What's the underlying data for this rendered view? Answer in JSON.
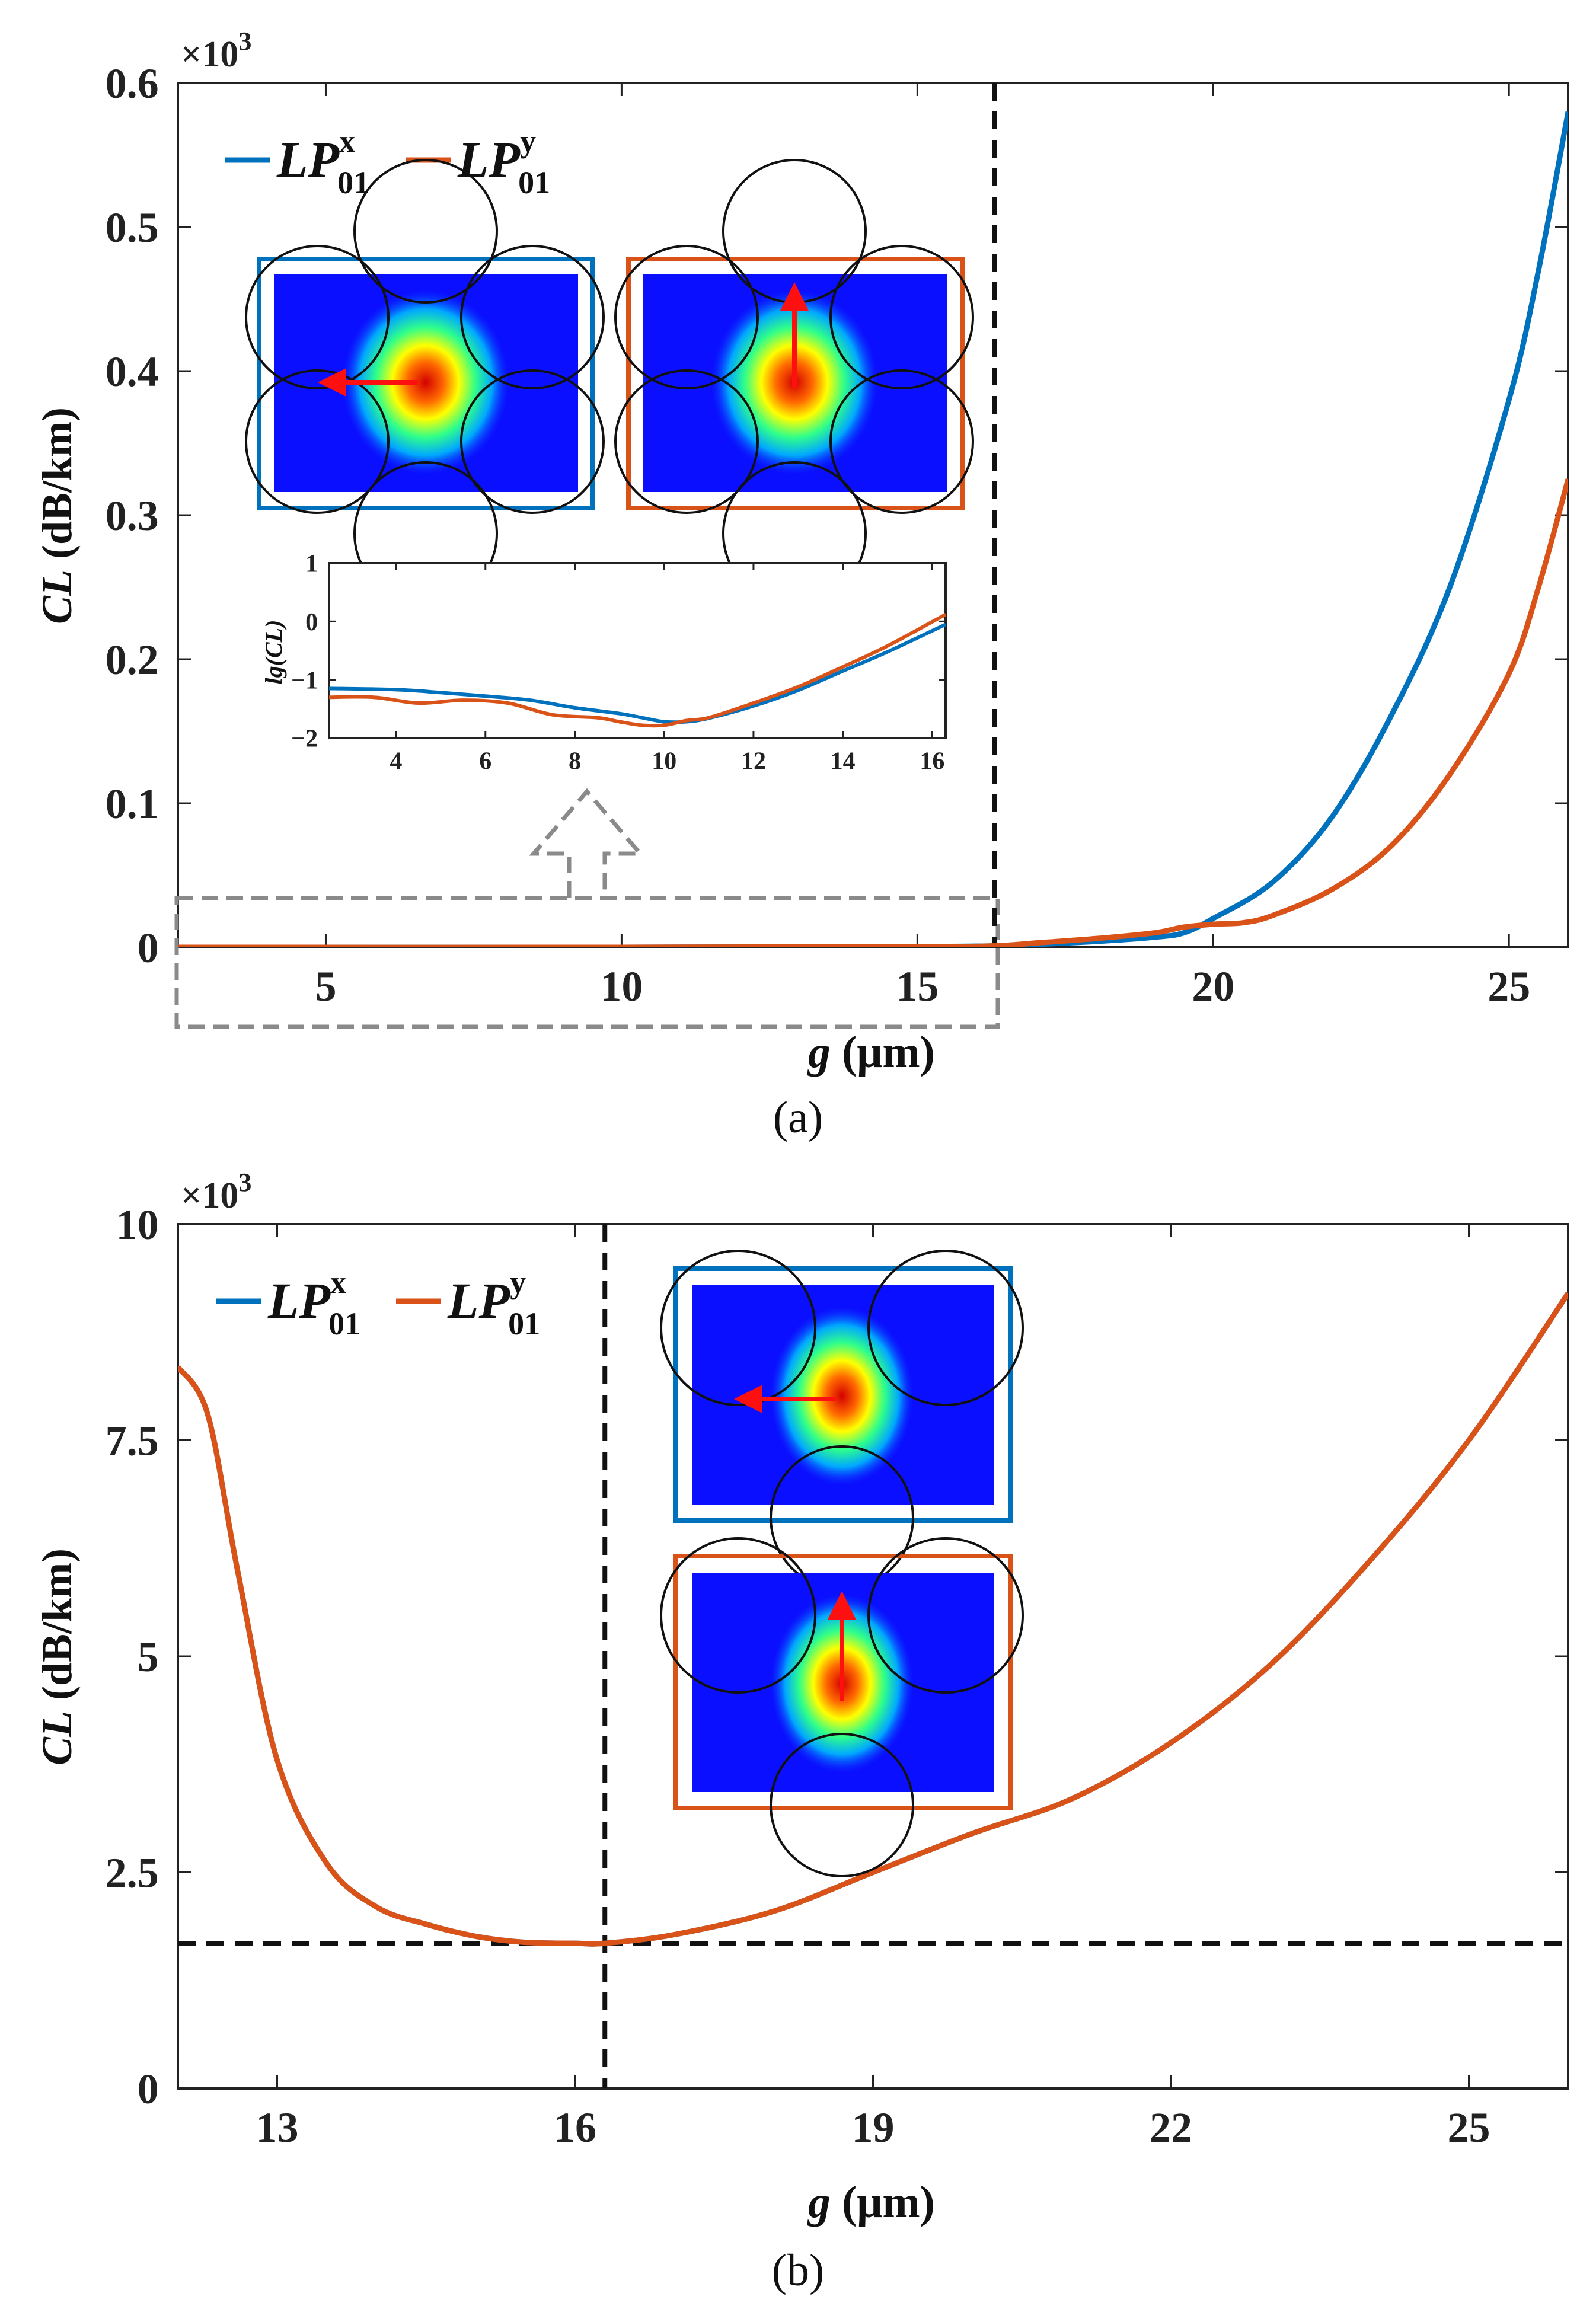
{
  "colors": {
    "lpx": "#0072BD",
    "lpy": "#D95319"
  },
  "icons": [
    "mode-field-icon"
  ],
  "chart_data": [
    {
      "id": "a",
      "type": "line",
      "caption": "(a)",
      "multiplier": "×10",
      "multiplier_exp": "3",
      "ylabel_italic": "CL",
      "ylabel_rest": " (dB/km)",
      "xlabel_italic": "g",
      "xlabel_rest": " (μm)",
      "xlim": [
        2.5,
        26
      ],
      "ylim": [
        0,
        0.6
      ],
      "xticks": [
        5,
        10,
        15,
        20,
        25
      ],
      "yticks": [
        0,
        0.1,
        0.2,
        0.3,
        0.4,
        0.5,
        0.6
      ],
      "ytick_labels": [
        "0",
        "0.1",
        "0.2",
        "0.3",
        "0.4",
        "0.5",
        "0.6"
      ],
      "vline_x": 16.3,
      "legend_main": "LP",
      "series": [
        {
          "name": "LP01x",
          "sup": "x",
          "sub": "01",
          "color": "#0072BD",
          "x": [
            2.5,
            10,
            15,
            16.3,
            17,
            18,
            19,
            19.5,
            20,
            21,
            22,
            23,
            24,
            25,
            25.5,
            26
          ],
          "y": [
            0,
            0,
            0.0005,
            0.001,
            0.002,
            0.004,
            0.007,
            0.01,
            0.02,
            0.045,
            0.09,
            0.16,
            0.25,
            0.38,
            0.47,
            0.58
          ]
        },
        {
          "name": "LP01y",
          "sup": "y",
          "sub": "01",
          "color": "#D95319",
          "x": [
            2.5,
            10,
            15,
            16.3,
            17,
            18,
            19,
            19.5,
            20,
            20.5,
            21,
            22,
            23,
            24,
            25,
            25.5,
            26
          ],
          "y": [
            0,
            0,
            0.0005,
            0.001,
            0.003,
            0.006,
            0.01,
            0.014,
            0.016,
            0.017,
            0.022,
            0.04,
            0.07,
            0.12,
            0.19,
            0.25,
            0.325
          ]
        }
      ],
      "inset": {
        "type": "line",
        "ylabel": "lg(CL)",
        "xlim": [
          2.5,
          16.3
        ],
        "ylim": [
          -2,
          1
        ],
        "xticks": [
          4,
          6,
          8,
          10,
          12,
          14,
          16
        ],
        "yticks": [
          -2,
          -1,
          0,
          1
        ],
        "ytick_labels": [
          "−2",
          "−1",
          "0",
          "1"
        ],
        "series": [
          {
            "name": "LP01x",
            "color": "#0072BD",
            "x": [
              2.5,
              4,
              5,
              6,
              7,
              8,
              9,
              9.5,
              10,
              10.5,
              11,
              12,
              13,
              14,
              15,
              16.3
            ],
            "y": [
              -1.15,
              -1.17,
              -1.22,
              -1.28,
              -1.35,
              -1.48,
              -1.58,
              -1.65,
              -1.72,
              -1.72,
              -1.66,
              -1.45,
              -1.18,
              -0.85,
              -0.52,
              -0.05
            ]
          },
          {
            "name": "LP01y",
            "color": "#D95319",
            "x": [
              2.5,
              3.5,
              4.5,
              5.5,
              6.5,
              7.5,
              8.5,
              9,
              9.5,
              10,
              10.5,
              11,
              12,
              13,
              14,
              15,
              16.3
            ],
            "y": [
              -1.3,
              -1.3,
              -1.4,
              -1.35,
              -1.4,
              -1.6,
              -1.65,
              -1.72,
              -1.78,
              -1.78,
              -1.7,
              -1.65,
              -1.4,
              -1.12,
              -0.78,
              -0.42,
              0.12
            ]
          }
        ]
      }
    },
    {
      "id": "b",
      "type": "line",
      "caption": "(b)",
      "multiplier": "×10",
      "multiplier_exp": "3",
      "ylabel_italic": "CL",
      "ylabel_rest": " (dB/km)",
      "xlabel_italic": "g",
      "xlabel_rest": " (μm)",
      "xlim": [
        12,
        26
      ],
      "ylim": [
        0,
        10
      ],
      "xticks": [
        13,
        16,
        19,
        22,
        25
      ],
      "yticks": [
        0,
        2.5,
        5,
        7.5,
        10
      ],
      "ytick_labels": [
        "0",
        "2.5",
        "5",
        "7.5",
        "10"
      ],
      "vline_x": 16.3,
      "hline_y": 1.68,
      "legend_main": "LP",
      "series": [
        {
          "name": "LP01x",
          "sup": "x",
          "sub": "01",
          "color": "#0072BD",
          "x": [
            12,
            12.3,
            12.6,
            13,
            13.5,
            14,
            14.5,
            15,
            15.5,
            16,
            16.3,
            17,
            18,
            19,
            20,
            21,
            22,
            23,
            24,
            25,
            26
          ],
          "y": [
            8.35,
            7.8,
            6.0,
            3.8,
            2.6,
            2.1,
            1.9,
            1.76,
            1.69,
            1.68,
            1.68,
            1.78,
            2.05,
            2.5,
            2.95,
            3.35,
            4.0,
            4.9,
            6.1,
            7.5,
            9.2
          ]
        },
        {
          "name": "LP01y",
          "sup": "y",
          "sub": "01",
          "color": "#D95319",
          "x": [
            12,
            12.3,
            12.6,
            13,
            13.5,
            14,
            14.5,
            15,
            15.5,
            16,
            16.3,
            17,
            18,
            19,
            20,
            21,
            22,
            23,
            24,
            25,
            26
          ],
          "y": [
            8.35,
            7.8,
            6.0,
            3.8,
            2.6,
            2.1,
            1.9,
            1.76,
            1.69,
            1.68,
            1.68,
            1.78,
            2.05,
            2.5,
            2.95,
            3.35,
            4.0,
            4.9,
            6.1,
            7.5,
            9.2
          ]
        }
      ]
    }
  ]
}
